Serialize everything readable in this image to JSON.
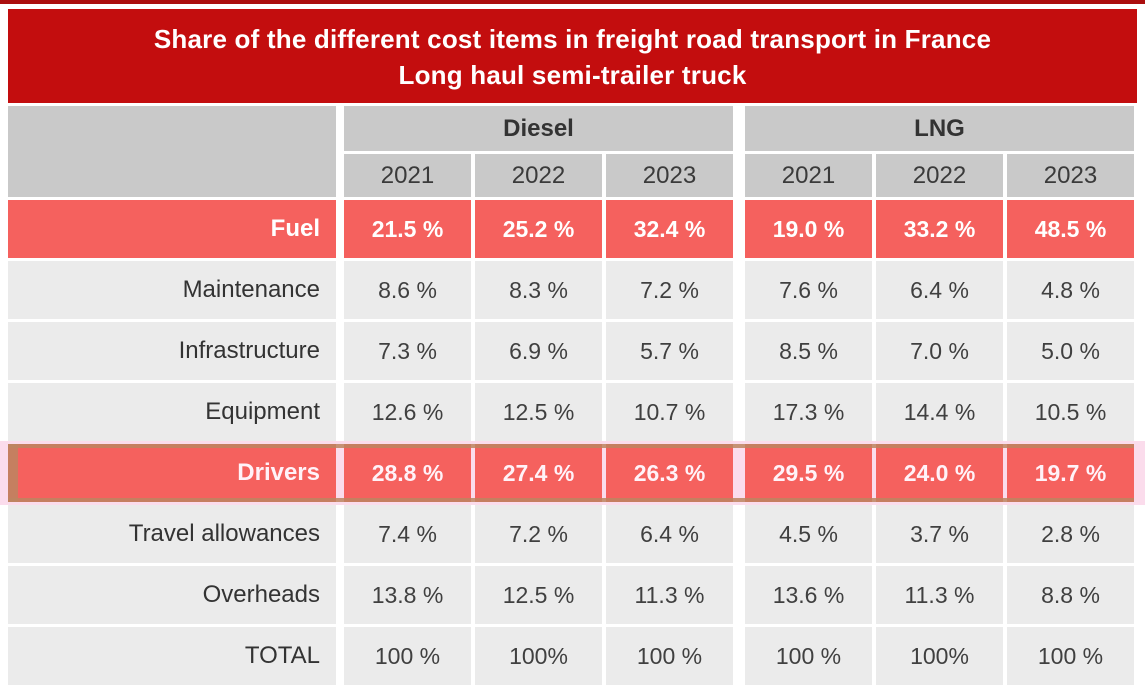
{
  "title": {
    "line1": "Share of the different cost items in freight road transport in France",
    "line2": "Long haul semi-trailer truck"
  },
  "colors": {
    "banner_red": "#c30d0e",
    "top_strip_red": "#ab0e0e",
    "highlight_coral": "#f5615e",
    "header_gray": "#c9c9c9",
    "row_gray": "#ebebeb",
    "selection_pink": "#fbdcec",
    "selection_tan": "#bc8560"
  },
  "table": {
    "groups": [
      {
        "label": "Diesel"
      },
      {
        "label": "LNG"
      }
    ],
    "years": [
      "2021",
      "2022",
      "2023",
      "2021",
      "2022",
      "2023"
    ],
    "rows": [
      {
        "label": "Fuel",
        "highlight": true,
        "values": [
          "21.5 %",
          "25.2 %",
          "32.4 %",
          "19.0 %",
          "33.2 %",
          "48.5 %"
        ]
      },
      {
        "label": "Maintenance",
        "highlight": false,
        "values": [
          "8.6 %",
          "8.3 %",
          "7.2 %",
          "7.6 %",
          "6.4 %",
          "4.8 %"
        ]
      },
      {
        "label": "Infrastructure",
        "highlight": false,
        "values": [
          "7.3 %",
          "6.9 %",
          "5.7 %",
          "8.5 %",
          "7.0 %",
          "5.0 %"
        ]
      },
      {
        "label": "Equipment",
        "highlight": false,
        "values": [
          "12.6 %",
          "12.5 %",
          "10.7 %",
          "17.3 %",
          "14.4 %",
          "10.5 %"
        ]
      },
      {
        "label": "Drivers",
        "highlight": true,
        "selected": true,
        "values": [
          "28.8 %",
          "27.4 %",
          "26.3 %",
          "29.5 %",
          "24.0 %",
          "19.7 %"
        ]
      },
      {
        "label": "Travel allowances",
        "highlight": false,
        "values": [
          "7.4 %",
          "7.2 %",
          "6.4 %",
          "4.5 %",
          "3.7 %",
          "2.8 %"
        ]
      },
      {
        "label": "Overheads",
        "highlight": false,
        "values": [
          "13.8 %",
          "12.5 %",
          "11.3 %",
          "13.6 %",
          "11.3 %",
          "8.8 %"
        ]
      },
      {
        "label": "TOTAL",
        "highlight": false,
        "values": [
          "100 %",
          "100%",
          "100 %",
          "100 %",
          "100%",
          "100 %"
        ]
      }
    ]
  },
  "chart_data": {
    "type": "table",
    "title": "Share of the different cost items in freight road transport in France — Long haul semi-trailer truck",
    "column_groups": [
      "Diesel",
      "LNG"
    ],
    "columns": [
      "Diesel 2021",
      "Diesel 2022",
      "Diesel 2023",
      "LNG 2021",
      "LNG 2022",
      "LNG 2023"
    ],
    "row_labels": [
      "Fuel",
      "Maintenance",
      "Infrastructure",
      "Equipment",
      "Drivers",
      "Travel allowances",
      "Overheads",
      "TOTAL"
    ],
    "values_percent": [
      [
        21.5,
        25.2,
        32.4,
        19.0,
        33.2,
        48.5
      ],
      [
        8.6,
        8.3,
        7.2,
        7.6,
        6.4,
        4.8
      ],
      [
        7.3,
        6.9,
        5.7,
        8.5,
        7.0,
        5.0
      ],
      [
        12.6,
        12.5,
        10.7,
        17.3,
        14.4,
        10.5
      ],
      [
        28.8,
        27.4,
        26.3,
        29.5,
        24.0,
        19.7
      ],
      [
        7.4,
        7.2,
        6.4,
        4.5,
        3.7,
        2.8
      ],
      [
        13.8,
        12.5,
        11.3,
        13.6,
        11.3,
        8.8
      ],
      [
        100,
        100,
        100,
        100,
        100,
        100
      ]
    ],
    "highlighted_rows": [
      "Fuel",
      "Drivers"
    ],
    "unit": "%"
  }
}
